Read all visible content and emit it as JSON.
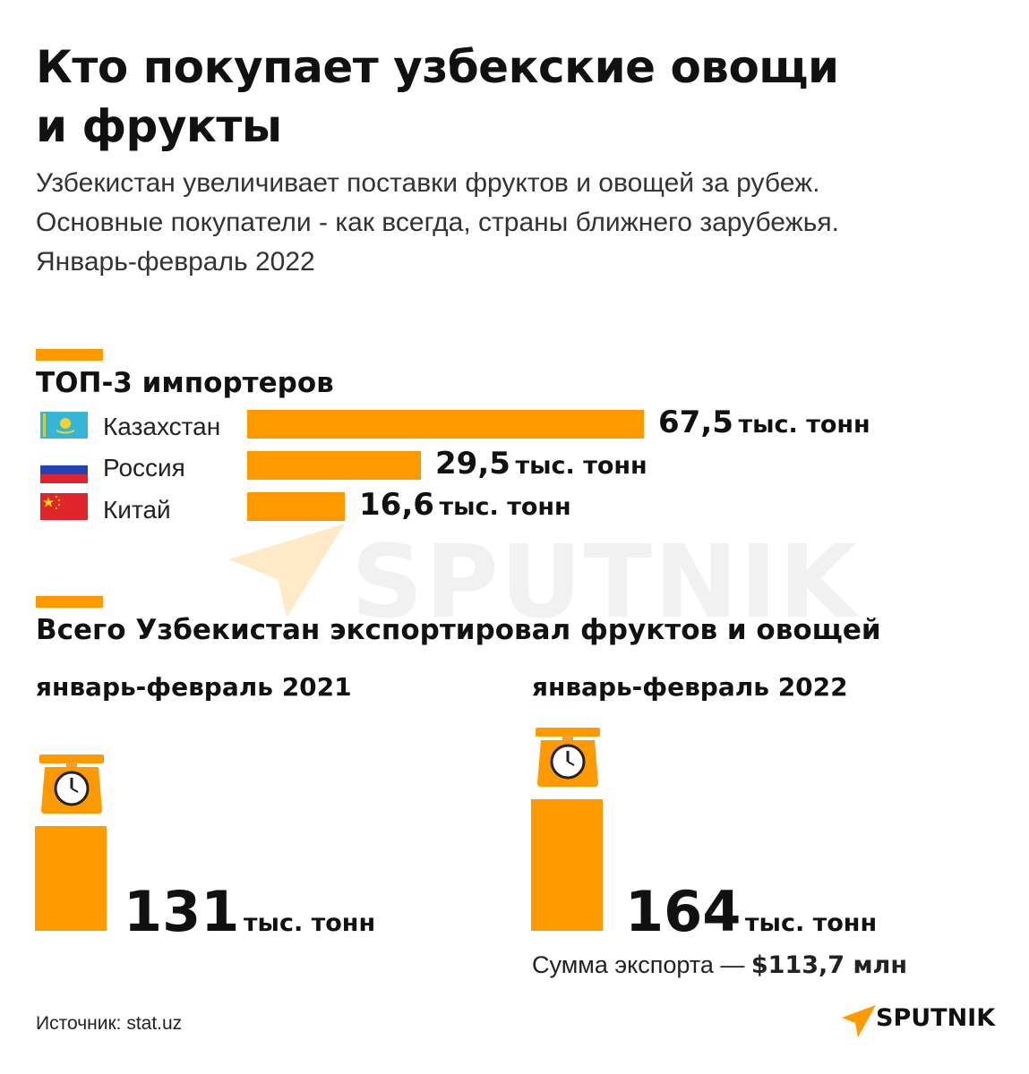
{
  "header": {
    "title_line1": "Кто покупает узбекские овощи",
    "title_line2": "и фрукты",
    "subtitle_line1": "Узбекистан увеличивает поставки фруктов и овощей за рубеж.",
    "subtitle_line2": "Основные покупатели - как всегда, страны ближнего зарубежья.",
    "subtitle_line3": "Январь-февраль 2022"
  },
  "colors": {
    "accent": "#ff9900",
    "text": "#111111"
  },
  "chart_data": [
    {
      "type": "bar",
      "title": "ТОП-3 импортеров",
      "categories": [
        "Казахстан",
        "Россия",
        "Китай"
      ],
      "values": [
        67.5,
        29.5,
        16.6
      ],
      "value_labels": [
        "67,5",
        "29,5",
        "16,6"
      ],
      "unit": "тыс. тонн",
      "flags": [
        "kazakhstan-flag-icon",
        "russia-flag-icon",
        "china-flag-icon"
      ]
    },
    {
      "type": "bar",
      "title": "Всего Узбекистан экспортировал фруктов и овощей",
      "categories": [
        "январь-февраль 2021",
        "январь-февраль 2022"
      ],
      "values": [
        131,
        164
      ],
      "unit": "тыс. тонн",
      "icon": "scale-icon"
    }
  ],
  "export_sum": {
    "label": "Сумма экспорта —",
    "value": "$113,7 млн"
  },
  "source": "Источник: stat.uz",
  "logo": "SPUTNIK",
  "watermark": "SPUTNIK"
}
